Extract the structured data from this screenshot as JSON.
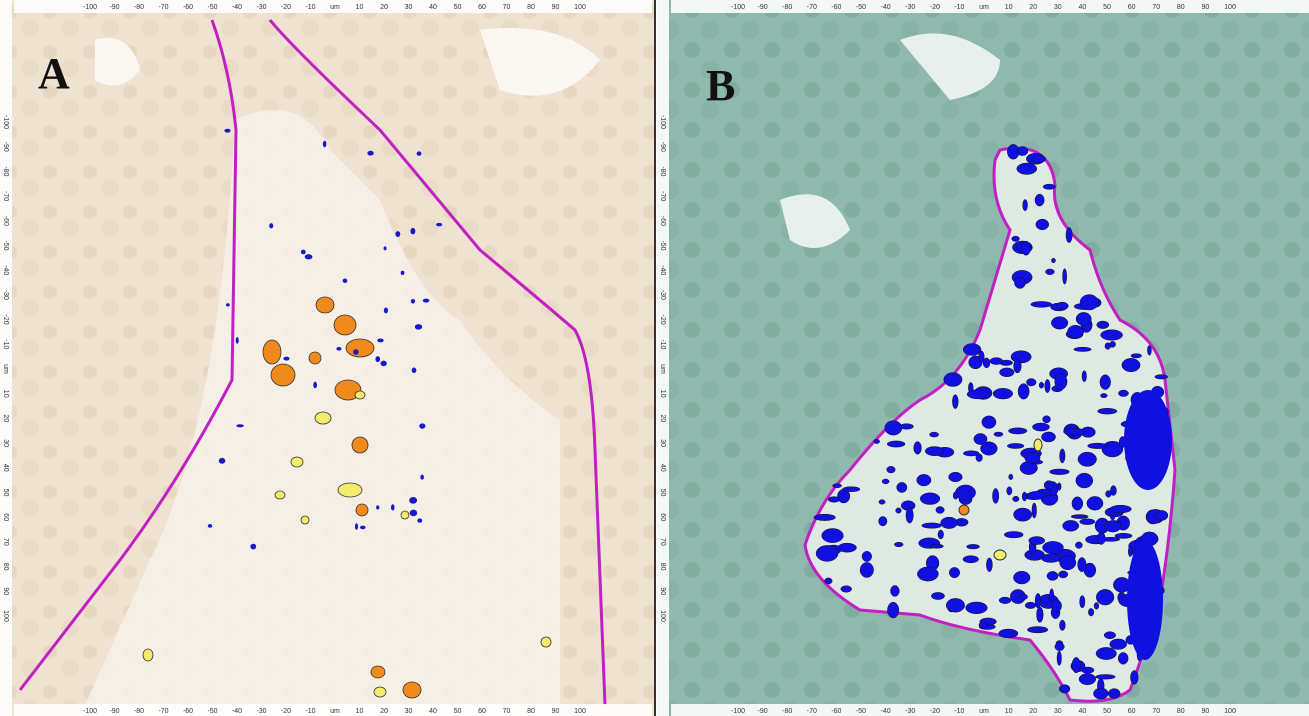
{
  "panels": [
    {
      "label": "A"
    },
    {
      "label": "B"
    }
  ],
  "ruler": [
    "-100",
    "-90",
    "-80",
    "-70",
    "-60",
    "-50",
    "-40",
    "-30",
    "-20",
    "-10",
    "um",
    "10",
    "20",
    "30",
    "40",
    "50",
    "60",
    "70",
    "80",
    "90",
    "100"
  ]
}
